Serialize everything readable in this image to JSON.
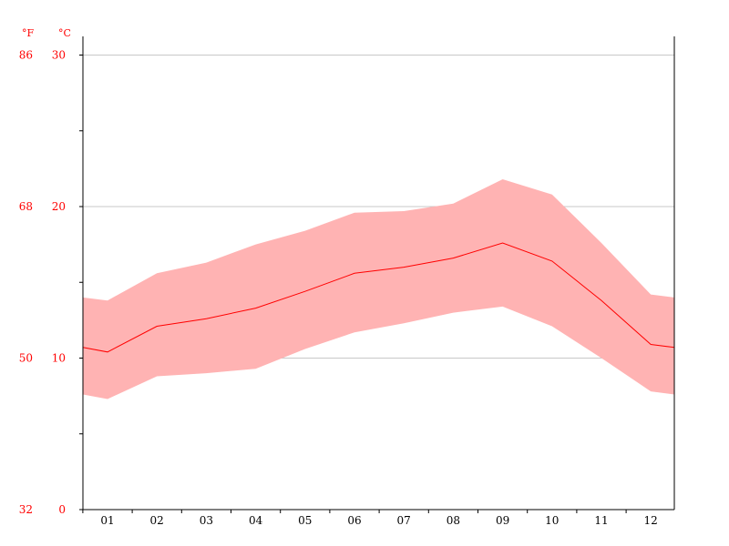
{
  "chart_data": {
    "type": "area",
    "categories": [
      "01",
      "02",
      "03",
      "04",
      "05",
      "06",
      "07",
      "08",
      "09",
      "10",
      "11",
      "12"
    ],
    "series": [
      {
        "role": "max",
        "values": [
          13.8,
          15.6,
          16.3,
          17.5,
          18.4,
          19.6,
          19.7,
          20.2,
          21.8,
          20.8,
          17.6,
          14.2
        ]
      },
      {
        "role": "mean",
        "values": [
          10.4,
          12.1,
          12.6,
          13.3,
          14.4,
          15.6,
          16.0,
          16.6,
          17.6,
          16.4,
          13.8,
          10.9
        ]
      },
      {
        "role": "min",
        "values": [
          7.3,
          8.8,
          9.0,
          9.3,
          10.6,
          11.7,
          12.3,
          13.0,
          13.4,
          12.1,
          10.0,
          7.8
        ]
      }
    ],
    "boundary_left": {
      "max": 14.0,
      "mean": 10.7,
      "min": 7.6
    },
    "boundary_right": {
      "max": 14.0,
      "mean": 10.7,
      "min": 7.6
    },
    "ylim_c": [
      0,
      31.2
    ],
    "y_ticks_c": [
      "0",
      "10",
      "20",
      "30"
    ],
    "y_ticks_f": [
      "32",
      "50",
      "68",
      "86"
    ],
    "y_unit_f": "°F",
    "y_unit_c": "°C",
    "grid": "horizontal",
    "colors": {
      "band": "#ffb3b3",
      "line": "#ff0000",
      "labels": "#ff0000",
      "grid": "#c8c8c8",
      "axis": "#000000"
    }
  }
}
